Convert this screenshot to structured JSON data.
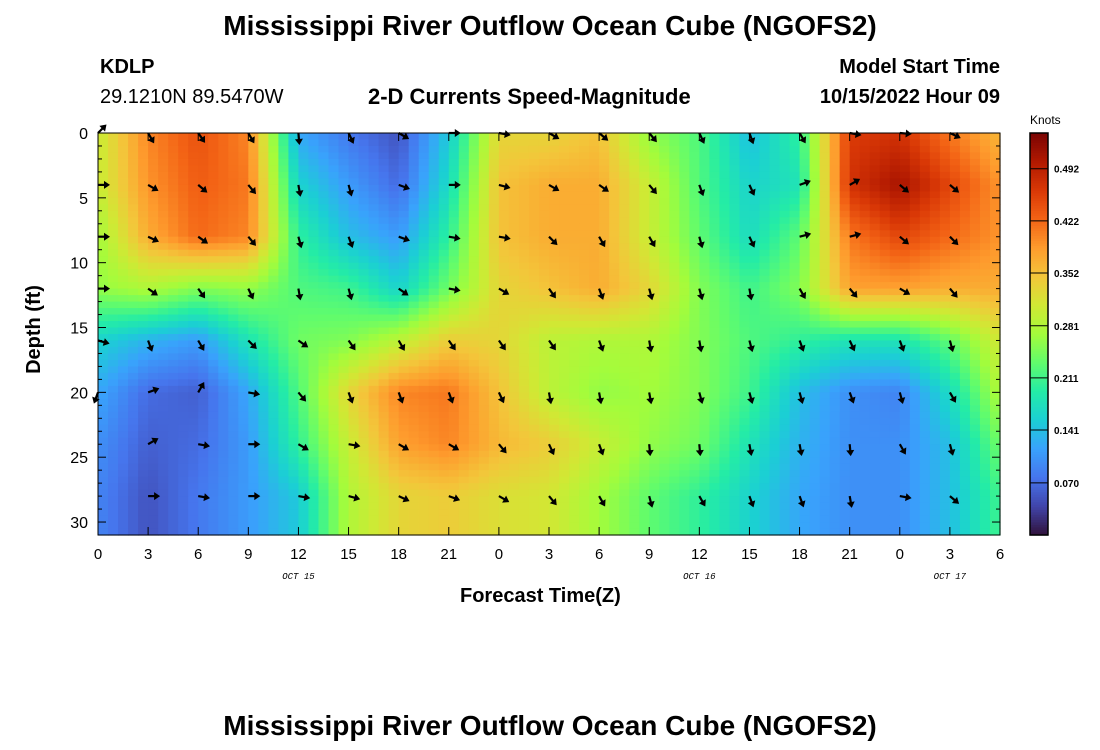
{
  "header": {
    "title": "Mississippi River Outflow Ocean Cube (NGOFS2)",
    "station_id": "KDLP",
    "coordinates": "29.1210N  89.5470W",
    "subtitle": "2-D Currents Speed-Magnitude",
    "model_start_label": "Model Start Time",
    "model_start_value": "10/15/2022 Hour 09"
  },
  "footer": {
    "title": "Mississippi River Outflow Ocean Cube (NGOFS2)"
  },
  "chart_data": {
    "type": "heatmap",
    "xlabel": "Forecast Time(Z)",
    "ylabel": "Depth (ft)",
    "colorbar_label": "Knots",
    "x_tick_labels": [
      "0",
      "3",
      "6",
      "9",
      "12",
      "15",
      "18",
      "21",
      "0",
      "3",
      "6",
      "9",
      "12",
      "15",
      "18",
      "21",
      "0",
      "3",
      "6"
    ],
    "date_labels": [
      {
        "label": "OCT 15",
        "hour": 12
      },
      {
        "label": "OCT 16",
        "hour": 36
      },
      {
        "label": "OCT 17",
        "hour": 51
      }
    ],
    "xlim_hours": [
      0,
      54
    ],
    "y_ticks": [
      0,
      5,
      10,
      15,
      20,
      25,
      30
    ],
    "ylim": [
      0,
      31
    ],
    "y_inverted": true,
    "colorbar_ticks": [
      0.07,
      0.141,
      0.211,
      0.281,
      0.352,
      0.422,
      0.492
    ],
    "colorbar_tick_labels": [
      "0.070",
      "0.141",
      "0.211",
      "0.281",
      "0.352",
      "0.422",
      "0.492"
    ],
    "value_range": [
      0.0,
      0.54
    ],
    "colormap": [
      "#30123b",
      "#4145ab",
      "#4675ed",
      "#39a2fc",
      "#1bcfd4",
      "#24eca6",
      "#61fc6c",
      "#a4fc3b",
      "#d1e834",
      "#f3c63a",
      "#fe9b2d",
      "#f36315",
      "#d93806",
      "#b11901",
      "#7a0403"
    ],
    "grid_x_hours": [
      0,
      3,
      6,
      9,
      12,
      15,
      18,
      21,
      24,
      27,
      30,
      33,
      36,
      39,
      42,
      45,
      48,
      51,
      54
    ],
    "grid_depths": [
      0,
      4,
      8,
      12,
      16,
      20,
      24,
      28
    ],
    "speed_grid": [
      [
        0.3,
        0.4,
        0.44,
        0.4,
        0.12,
        0.08,
        0.05,
        0.15,
        0.33,
        0.33,
        0.35,
        0.26,
        0.22,
        0.14,
        0.2,
        0.46,
        0.47,
        0.41,
        0.36
      ],
      [
        0.3,
        0.39,
        0.43,
        0.41,
        0.16,
        0.11,
        0.07,
        0.17,
        0.35,
        0.37,
        0.37,
        0.3,
        0.22,
        0.16,
        0.18,
        0.47,
        0.51,
        0.45,
        0.39
      ],
      [
        0.27,
        0.37,
        0.42,
        0.4,
        0.2,
        0.14,
        0.11,
        0.2,
        0.35,
        0.37,
        0.37,
        0.3,
        0.23,
        0.17,
        0.23,
        0.41,
        0.45,
        0.42,
        0.39
      ],
      [
        0.26,
        0.28,
        0.25,
        0.26,
        0.22,
        0.21,
        0.16,
        0.24,
        0.33,
        0.35,
        0.37,
        0.33,
        0.25,
        0.21,
        0.25,
        0.38,
        0.38,
        0.37,
        0.37
      ],
      [
        0.16,
        0.13,
        0.11,
        0.18,
        0.24,
        0.25,
        0.29,
        0.34,
        0.33,
        0.29,
        0.28,
        0.28,
        0.25,
        0.22,
        0.2,
        0.18,
        0.18,
        0.23,
        0.31
      ],
      [
        0.12,
        0.07,
        0.06,
        0.12,
        0.22,
        0.33,
        0.4,
        0.41,
        0.35,
        0.29,
        0.26,
        0.27,
        0.25,
        0.21,
        0.14,
        0.1,
        0.09,
        0.17,
        0.28
      ],
      [
        0.1,
        0.06,
        0.07,
        0.11,
        0.2,
        0.3,
        0.38,
        0.4,
        0.36,
        0.34,
        0.3,
        0.26,
        0.24,
        0.18,
        0.13,
        0.1,
        0.1,
        0.14,
        0.24
      ],
      [
        0.09,
        0.05,
        0.08,
        0.11,
        0.15,
        0.28,
        0.33,
        0.34,
        0.32,
        0.31,
        0.27,
        0.23,
        0.2,
        0.16,
        0.12,
        0.1,
        0.1,
        0.14,
        0.21
      ]
    ],
    "arrows": [
      [
        0,
        0,
        45
      ],
      [
        3,
        0,
        150
      ],
      [
        6,
        0,
        145
      ],
      [
        9,
        0,
        150
      ],
      [
        12,
        0,
        175
      ],
      [
        15,
        0,
        155
      ],
      [
        18,
        0,
        120
      ],
      [
        21,
        0,
        90
      ],
      [
        24,
        0,
        100
      ],
      [
        27,
        0,
        120
      ],
      [
        30,
        0,
        130
      ],
      [
        33,
        0,
        140
      ],
      [
        36,
        0,
        155
      ],
      [
        39,
        0,
        160
      ],
      [
        42,
        0,
        150
      ],
      [
        45,
        0,
        100
      ],
      [
        48,
        0,
        95
      ],
      [
        51,
        0,
        115
      ],
      [
        0,
        4,
        90
      ],
      [
        3,
        4,
        120
      ],
      [
        6,
        4,
        130
      ],
      [
        9,
        4,
        140
      ],
      [
        12,
        4,
        170
      ],
      [
        15,
        4,
        165
      ],
      [
        18,
        4,
        110
      ],
      [
        21,
        4,
        90
      ],
      [
        24,
        4,
        105
      ],
      [
        27,
        4,
        120
      ],
      [
        30,
        4,
        125
      ],
      [
        33,
        4,
        140
      ],
      [
        36,
        4,
        160
      ],
      [
        39,
        4,
        155
      ],
      [
        42,
        4,
        70
      ],
      [
        45,
        4,
        60
      ],
      [
        48,
        4,
        130
      ],
      [
        51,
        4,
        130
      ],
      [
        0,
        8,
        90
      ],
      [
        3,
        8,
        115
      ],
      [
        6,
        8,
        125
      ],
      [
        9,
        8,
        140
      ],
      [
        12,
        8,
        165
      ],
      [
        15,
        8,
        160
      ],
      [
        18,
        8,
        110
      ],
      [
        21,
        8,
        100
      ],
      [
        24,
        8,
        100
      ],
      [
        27,
        8,
        135
      ],
      [
        30,
        8,
        150
      ],
      [
        33,
        8,
        150
      ],
      [
        36,
        8,
        165
      ],
      [
        39,
        8,
        155
      ],
      [
        42,
        8,
        75
      ],
      [
        45,
        8,
        75
      ],
      [
        48,
        8,
        130
      ],
      [
        51,
        8,
        135
      ],
      [
        0,
        12,
        90
      ],
      [
        3,
        12,
        125
      ],
      [
        6,
        12,
        145
      ],
      [
        9,
        12,
        155
      ],
      [
        12,
        12,
        170
      ],
      [
        15,
        12,
        165
      ],
      [
        18,
        12,
        125
      ],
      [
        21,
        12,
        100
      ],
      [
        24,
        12,
        120
      ],
      [
        27,
        12,
        145
      ],
      [
        30,
        12,
        160
      ],
      [
        33,
        12,
        165
      ],
      [
        36,
        12,
        165
      ],
      [
        39,
        12,
        170
      ],
      [
        42,
        12,
        150
      ],
      [
        45,
        12,
        140
      ],
      [
        48,
        12,
        120
      ],
      [
        51,
        12,
        140
      ],
      [
        0,
        16,
        105
      ],
      [
        3,
        16,
        160
      ],
      [
        6,
        16,
        150
      ],
      [
        9,
        16,
        135
      ],
      [
        12,
        16,
        125
      ],
      [
        15,
        16,
        145
      ],
      [
        18,
        16,
        150
      ],
      [
        21,
        16,
        145
      ],
      [
        24,
        16,
        145
      ],
      [
        27,
        16,
        145
      ],
      [
        30,
        16,
        160
      ],
      [
        33,
        16,
        170
      ],
      [
        36,
        16,
        170
      ],
      [
        39,
        16,
        165
      ],
      [
        42,
        16,
        160
      ],
      [
        45,
        16,
        155
      ],
      [
        48,
        16,
        160
      ],
      [
        51,
        16,
        165
      ],
      [
        0,
        20,
        200
      ],
      [
        3,
        20,
        70
      ],
      [
        6,
        20,
        30
      ],
      [
        9,
        20,
        100
      ],
      [
        12,
        20,
        140
      ],
      [
        15,
        20,
        160
      ],
      [
        18,
        20,
        160
      ],
      [
        21,
        20,
        160
      ],
      [
        24,
        20,
        155
      ],
      [
        27,
        20,
        170
      ],
      [
        30,
        20,
        170
      ],
      [
        33,
        20,
        170
      ],
      [
        36,
        20,
        165
      ],
      [
        39,
        20,
        165
      ],
      [
        42,
        20,
        165
      ],
      [
        45,
        20,
        160
      ],
      [
        48,
        20,
        165
      ],
      [
        51,
        20,
        150
      ],
      [
        3,
        24,
        60
      ],
      [
        6,
        24,
        100
      ],
      [
        9,
        24,
        90
      ],
      [
        12,
        24,
        120
      ],
      [
        15,
        24,
        100
      ],
      [
        18,
        24,
        120
      ],
      [
        21,
        24,
        120
      ],
      [
        24,
        24,
        140
      ],
      [
        27,
        24,
        155
      ],
      [
        30,
        24,
        160
      ],
      [
        33,
        24,
        175
      ],
      [
        36,
        24,
        175
      ],
      [
        39,
        24,
        170
      ],
      [
        42,
        24,
        170
      ],
      [
        45,
        24,
        175
      ],
      [
        48,
        24,
        150
      ],
      [
        51,
        24,
        165
      ],
      [
        3,
        28,
        90
      ],
      [
        6,
        28,
        100
      ],
      [
        9,
        28,
        90
      ],
      [
        12,
        28,
        100
      ],
      [
        15,
        28,
        105
      ],
      [
        18,
        28,
        115
      ],
      [
        21,
        28,
        110
      ],
      [
        24,
        28,
        120
      ],
      [
        27,
        28,
        140
      ],
      [
        30,
        28,
        150
      ],
      [
        33,
        28,
        165
      ],
      [
        36,
        28,
        150
      ],
      [
        39,
        28,
        160
      ],
      [
        42,
        28,
        160
      ],
      [
        45,
        28,
        170
      ],
      [
        48,
        28,
        100
      ],
      [
        51,
        28,
        130
      ]
    ]
  }
}
